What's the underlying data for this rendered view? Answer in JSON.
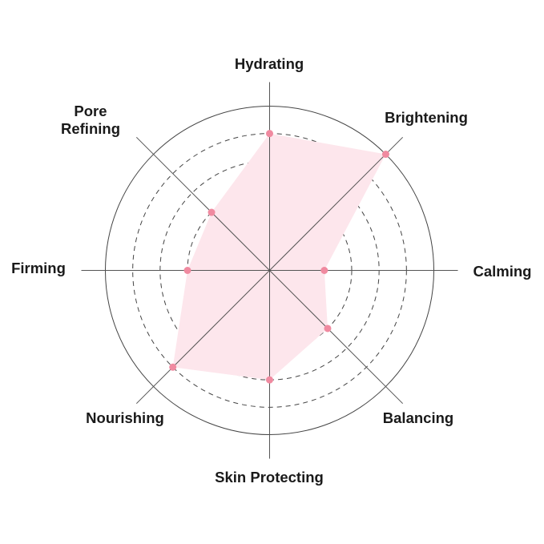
{
  "chart_data": {
    "type": "radar",
    "title": "",
    "axes": [
      "Hydrating",
      "Brightening",
      "Calming",
      "Balancing",
      "Skin Protecting",
      "Nourishing",
      "Firming",
      "Pore Refining"
    ],
    "values": [
      5,
      6,
      2,
      3,
      4,
      5,
      3,
      3
    ],
    "range": [
      0,
      6
    ],
    "grid_levels": [
      2,
      3,
      4,
      5
    ],
    "outer_level": 6,
    "grid": true,
    "colors": {
      "fill": "#fde6ec",
      "point": "#f08aa0",
      "axis": "#555555",
      "grid": "#444444",
      "label": "#1a1a1a"
    }
  }
}
